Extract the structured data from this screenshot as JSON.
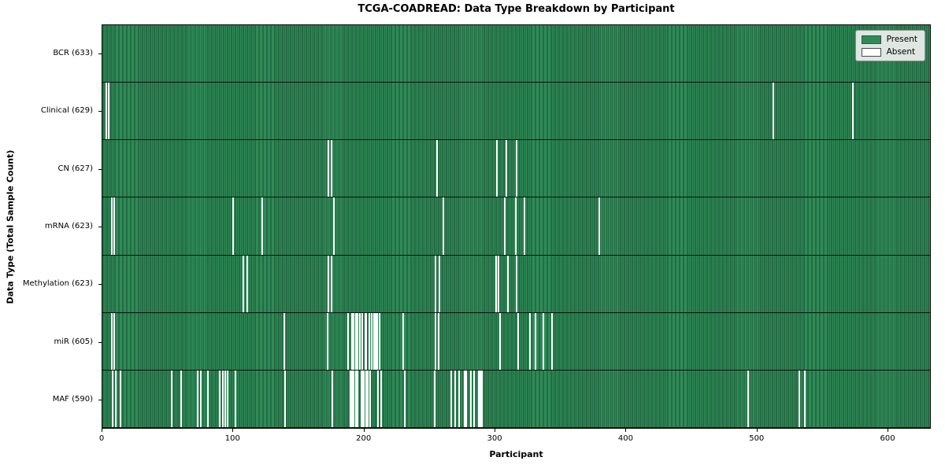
{
  "title": "TCGA-COADREAD: Data Type Breakdown by Participant",
  "colors": {
    "present": "#2e8b57",
    "absent": "#ffffff",
    "bar_edge": "#1b4d31",
    "plot_border": "#0a0a0a"
  },
  "legend": {
    "entries": [
      {
        "label": "Present",
        "color": "#2e8b57"
      },
      {
        "label": "Absent",
        "color": "#ffffff"
      }
    ]
  },
  "chart_data": {
    "type": "heatmap",
    "title": "TCGA-COADREAD: Data Type Breakdown by Participant",
    "xlabel": "Participant",
    "ylabel": "Data Type (Total Sample Count)",
    "xlim": [
      0,
      633
    ],
    "x_ticks": [
      0,
      100,
      200,
      300,
      400,
      500,
      600
    ],
    "participants_total": 633,
    "grid": false,
    "legend_position": "upper right",
    "cell_states": [
      "Present",
      "Absent"
    ],
    "rows": [
      {
        "name": "BCR",
        "label": "BCR (633)",
        "present_count": 633,
        "absent_participants": []
      },
      {
        "name": "Clinical",
        "label": "Clinical (629)",
        "present_count": 629,
        "absent_participants": [
          3,
          5,
          513,
          574
        ]
      },
      {
        "name": "CN",
        "label": "CN (627)",
        "present_count": 627,
        "absent_participants": [
          173,
          175,
          256,
          302,
          309,
          317
        ]
      },
      {
        "name": "mRNA",
        "label": "mRNA (623)",
        "present_count": 623,
        "absent_participants": [
          7,
          9,
          100,
          122,
          177,
          261,
          308,
          316,
          323,
          380
        ]
      },
      {
        "name": "Methylation",
        "label": "Methylation (623)",
        "present_count": 623,
        "absent_participants": [
          108,
          111,
          173,
          175,
          255,
          258,
          301,
          303,
          310,
          317
        ]
      },
      {
        "name": "miR",
        "label": "miR (605)",
        "present_count": 605,
        "absent_participants": [
          7,
          9,
          139,
          172,
          188,
          191,
          192,
          194,
          195,
          197,
          199,
          201,
          202,
          204,
          206,
          208,
          209,
          210,
          212,
          230,
          255,
          257,
          304,
          318,
          327,
          331,
          337,
          344
        ]
      },
      {
        "name": "MAF",
        "label": "MAF (590)",
        "present_count": 590,
        "absent_participants": [
          8,
          10,
          14,
          53,
          60,
          73,
          75,
          81,
          90,
          92,
          94,
          96,
          102,
          140,
          176,
          190,
          191,
          192,
          194,
          195,
          198,
          199,
          200,
          202,
          203,
          205,
          211,
          213,
          231,
          254,
          267,
          270,
          273,
          277,
          278,
          282,
          284,
          288,
          289,
          290,
          494,
          533,
          537
        ]
      }
    ]
  }
}
